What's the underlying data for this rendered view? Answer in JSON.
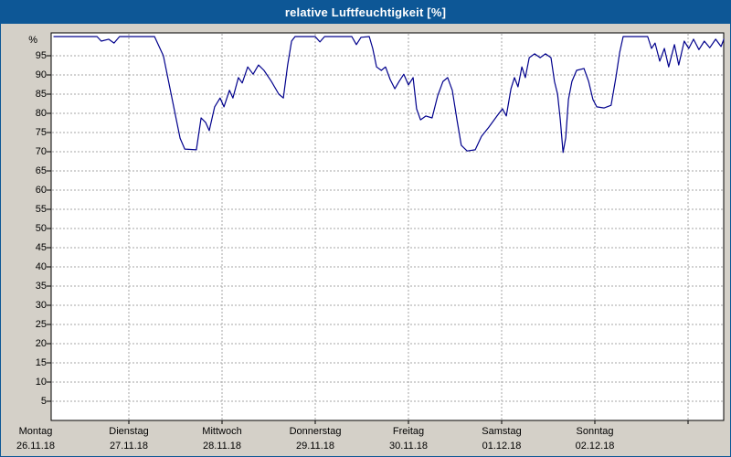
{
  "chart_data": {
    "type": "line",
    "title": "relative Luftfeuchtigkeit [%]",
    "ylabel": "%",
    "xlabel": "",
    "ylim": [
      0,
      101
    ],
    "x_hours_range": [
      4.7,
      177.2
    ],
    "x_axis_unit": "hours since Montag 26.11.18 00:00",
    "grid": "dashed",
    "legend": "none",
    "y_ticks": [
      5,
      10,
      15,
      20,
      25,
      30,
      35,
      40,
      45,
      50,
      55,
      60,
      65,
      70,
      75,
      80,
      85,
      90,
      95
    ],
    "x_days": [
      {
        "label": "Montag",
        "date": "26.11.18",
        "hour": 0
      },
      {
        "label": "Dienstag",
        "date": "27.11.18",
        "hour": 24
      },
      {
        "label": "Mittwoch",
        "date": "28.11.18",
        "hour": 48
      },
      {
        "label": "Donnerstag",
        "date": "29.11.18",
        "hour": 72
      },
      {
        "label": "Freitag",
        "date": "30.11.18",
        "hour": 96
      },
      {
        "label": "Samstag",
        "date": "01.12.18",
        "hour": 120
      },
      {
        "label": "Sonntag",
        "date": "02.12.18",
        "hour": 144
      }
    ],
    "colors": {
      "titlebar": "#0d5796",
      "window_border": "#0d5796",
      "background": "#d4d0c8",
      "plot_bg": "#ffffff",
      "grid": "#a6a6a6",
      "axis": "#000000",
      "line": "#00008c"
    },
    "series": [
      {
        "name": "relative Luftfeuchtigkeit",
        "unit": "%",
        "points": [
          [
            4.7,
            100
          ],
          [
            15.8,
            100
          ],
          [
            16.9,
            98.8
          ],
          [
            18.8,
            99.3
          ],
          [
            20.2,
            98.3
          ],
          [
            21.6,
            100
          ],
          [
            30.6,
            100
          ],
          [
            32.9,
            95
          ],
          [
            35.3,
            83
          ],
          [
            37.2,
            73.5
          ],
          [
            38.4,
            70.7
          ],
          [
            41.4,
            70.5
          ],
          [
            42.6,
            78.8
          ],
          [
            43.8,
            77.6
          ],
          [
            44.7,
            75.5
          ],
          [
            46.1,
            81.7
          ],
          [
            47.5,
            84
          ],
          [
            48.5,
            81.7
          ],
          [
            49.9,
            86
          ],
          [
            50.8,
            84
          ],
          [
            52.2,
            89.3
          ],
          [
            53.2,
            87.9
          ],
          [
            54.6,
            92.1
          ],
          [
            56,
            90.2
          ],
          [
            57.4,
            92.6
          ],
          [
            58.8,
            91.2
          ],
          [
            60.7,
            88.3
          ],
          [
            62.6,
            85
          ],
          [
            63.8,
            84
          ],
          [
            64.9,
            92.6
          ],
          [
            65.9,
            98.8
          ],
          [
            66.8,
            100
          ],
          [
            72,
            100
          ],
          [
            73.2,
            98.6
          ],
          [
            74.4,
            100
          ],
          [
            81.4,
            100
          ],
          [
            82.6,
            97.9
          ],
          [
            83.8,
            99.8
          ],
          [
            85.9,
            100
          ],
          [
            86.8,
            96.9
          ],
          [
            87.8,
            92.1
          ],
          [
            89,
            91.2
          ],
          [
            90.1,
            92.1
          ],
          [
            91.3,
            88.8
          ],
          [
            92.5,
            86.4
          ],
          [
            93.6,
            88.3
          ],
          [
            94.8,
            90.2
          ],
          [
            96,
            87.4
          ],
          [
            97.2,
            89.3
          ],
          [
            98.1,
            81.2
          ],
          [
            99.1,
            78.3
          ],
          [
            100.5,
            79.3
          ],
          [
            102.1,
            78.8
          ],
          [
            103.5,
            84.5
          ],
          [
            104.9,
            88.3
          ],
          [
            106.1,
            89.3
          ],
          [
            107.3,
            86
          ],
          [
            108.5,
            78.3
          ],
          [
            109.6,
            71.7
          ],
          [
            111.1,
            70.2
          ],
          [
            113.2,
            70.5
          ],
          [
            114.8,
            74
          ],
          [
            116.7,
            76.4
          ],
          [
            118.8,
            79.3
          ],
          [
            120.2,
            81.2
          ],
          [
            121.2,
            79.3
          ],
          [
            122.4,
            86.4
          ],
          [
            123.3,
            89.3
          ],
          [
            124.2,
            86.9
          ],
          [
            125.2,
            92.1
          ],
          [
            126.1,
            89.3
          ],
          [
            127.1,
            94.5
          ],
          [
            128.5,
            95.5
          ],
          [
            129.9,
            94.5
          ],
          [
            131.3,
            95.5
          ],
          [
            132.7,
            94.5
          ],
          [
            133.6,
            88.3
          ],
          [
            134.4,
            85
          ],
          [
            135.1,
            78.3
          ],
          [
            135.8,
            69.8
          ],
          [
            136.5,
            73.6
          ],
          [
            137.2,
            83.6
          ],
          [
            138.1,
            88.3
          ],
          [
            139.3,
            91.2
          ],
          [
            141.2,
            91.7
          ],
          [
            142.4,
            88.3
          ],
          [
            143.5,
            83.6
          ],
          [
            144.5,
            81.7
          ],
          [
            146.4,
            81.4
          ],
          [
            148.2,
            82.1
          ],
          [
            149.4,
            89.3
          ],
          [
            150.4,
            95.9
          ],
          [
            151.3,
            100
          ],
          [
            157.6,
            100
          ],
          [
            158.6,
            96.9
          ],
          [
            159.5,
            98.3
          ],
          [
            160.7,
            93.6
          ],
          [
            161.9,
            96.9
          ],
          [
            163,
            92.1
          ],
          [
            164.5,
            97.9
          ],
          [
            165.6,
            92.6
          ],
          [
            167,
            98.8
          ],
          [
            168.2,
            96.9
          ],
          [
            169.4,
            99.3
          ],
          [
            170.8,
            96.6
          ],
          [
            172.2,
            98.8
          ],
          [
            173.6,
            97.1
          ],
          [
            175.1,
            99.3
          ],
          [
            176.5,
            97.4
          ],
          [
            177.2,
            99.3
          ]
        ]
      }
    ]
  }
}
